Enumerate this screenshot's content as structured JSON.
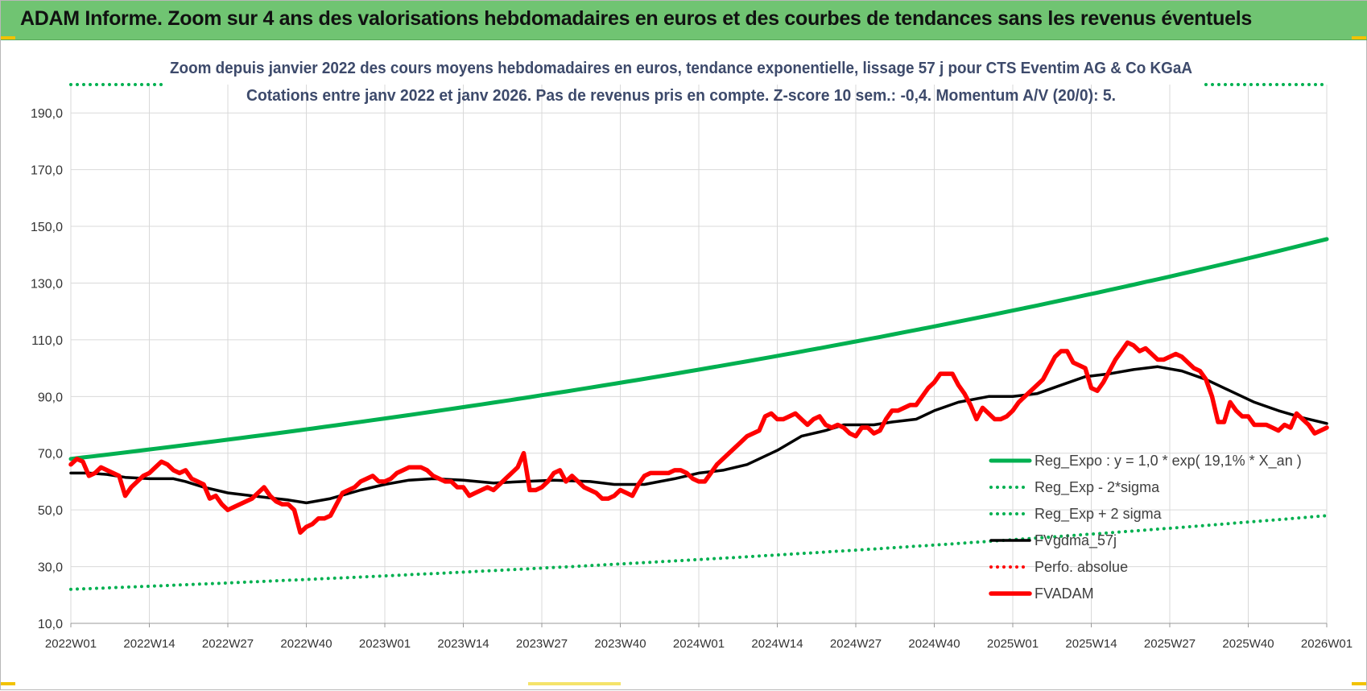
{
  "banner": {
    "title": "ADAM Informe. Zoom sur 4 ans des valorisations hebdomadaires en euros et des courbes de tendances sans les revenus éventuels"
  },
  "chart_data": {
    "type": "line",
    "title": "Zoom depuis janvier 2022 des cours moyens hebdomadaires en euros, tendance exponentielle, lissage 57 j pour CTS Eventim AG & Co KGaA",
    "subtitle": "Cotations entre janv 2022 et janv 2026. Pas de revenus pris en compte. Z-score 10 sem.: -0,4. Momentum A/V (20/0): 5.",
    "ylim": [
      10,
      200
    ],
    "yticks": [
      10,
      30,
      50,
      70,
      90,
      110,
      130,
      150,
      170,
      190
    ],
    "ytick_labels": [
      "10,0",
      "30,0",
      "50,0",
      "70,0",
      "90,0",
      "110,0",
      "130,0",
      "150,0",
      "170,0",
      "190,0"
    ],
    "xlim": [
      0,
      208
    ],
    "xticks": [
      0,
      13,
      26,
      39,
      52,
      65,
      78,
      91,
      104,
      117,
      130,
      143,
      156,
      169,
      182,
      195,
      208
    ],
    "xtick_labels": [
      "2022W01",
      "2022W14",
      "2022W27",
      "2022W40",
      "2023W01",
      "2023W14",
      "2023W27",
      "2023W40",
      "2024W01",
      "2024W14",
      "2024W27",
      "2024W40",
      "2025W01",
      "2025W14",
      "2025W27",
      "2025W40",
      "2026W01"
    ],
    "grid": true,
    "legend_position": "bottom-right",
    "series": [
      {
        "name": "Reg_Expo : y = 1,0 * exp( 19,1% * X_an )",
        "style": "solid",
        "color": "#00b050",
        "x": [
          0,
          208
        ],
        "values": [
          68,
          145.5
        ],
        "curve": "exponential"
      },
      {
        "name": "Reg_Exp - 2*sigma",
        "style": "dotted",
        "color": "#00b050",
        "x": [
          0,
          208
        ],
        "values": [
          22,
          48
        ],
        "curve": "exponential"
      },
      {
        "name": "Reg_Exp + 2 sigma",
        "style": "dotted",
        "color": "#00b050",
        "x": [
          0,
          16,
          188,
          208
        ],
        "values": [
          200,
          200,
          200,
          200
        ]
      },
      {
        "name": "FVgdma_57j",
        "style": "solid",
        "color": "#000000",
        "x": [
          0,
          3,
          6,
          9,
          13,
          17,
          19,
          22,
          26,
          30,
          34,
          36,
          39,
          43,
          48,
          52,
          56,
          60,
          65,
          70,
          75,
          80,
          86,
          90,
          95,
          100,
          104,
          108,
          112,
          117,
          121,
          125,
          128,
          133,
          136,
          140,
          143,
          147,
          152,
          156,
          160,
          164,
          168,
          172,
          176,
          180,
          184,
          188,
          192,
          196,
          200,
          204,
          208
        ],
        "values": [
          63,
          63,
          62.5,
          61.5,
          61,
          61,
          60,
          58,
          56,
          55,
          54,
          53.5,
          52.5,
          54,
          57,
          59,
          60.5,
          61,
          60.5,
          59.5,
          60,
          60.5,
          60,
          59,
          59,
          61,
          63,
          64,
          66,
          71,
          76,
          78,
          80,
          80,
          81,
          82,
          85,
          88,
          90,
          90,
          91,
          94,
          97,
          98,
          99.5,
          100.5,
          99,
          96,
          92,
          88,
          85,
          82.5,
          80.5
        ]
      },
      {
        "name": "Perfo. absolue",
        "style": "dotted",
        "color": "#ff0000",
        "x": [],
        "values": []
      },
      {
        "name": "FVADAM",
        "style": "solid",
        "color": "#ff0000",
        "x": [
          0,
          1,
          2,
          3,
          4,
          5,
          6,
          7,
          8,
          9,
          10,
          11,
          12,
          13,
          14,
          15,
          16,
          17,
          18,
          19,
          20,
          21,
          22,
          23,
          24,
          25,
          26,
          27,
          28,
          29,
          30,
          31,
          32,
          33,
          34,
          35,
          36,
          37,
          38,
          39,
          40,
          41,
          42,
          43,
          44,
          45,
          46,
          47,
          48,
          49,
          50,
          51,
          52,
          53,
          54,
          55,
          56,
          57,
          58,
          59,
          60,
          61,
          62,
          63,
          64,
          65,
          66,
          67,
          68,
          69,
          70,
          71,
          72,
          73,
          74,
          75,
          76,
          77,
          78,
          79,
          80,
          81,
          82,
          83,
          84,
          85,
          86,
          87,
          88,
          89,
          90,
          91,
          92,
          93,
          94,
          95,
          96,
          97,
          98,
          99,
          100,
          101,
          102,
          103,
          104,
          105,
          106,
          107,
          108,
          109,
          110,
          111,
          112,
          113,
          114,
          115,
          116,
          117,
          118,
          119,
          120,
          121,
          122,
          123,
          124,
          125,
          126,
          127,
          128,
          129,
          130,
          131,
          132,
          133,
          134,
          135,
          136,
          137,
          138,
          139,
          140,
          141,
          142,
          143,
          144,
          145,
          146,
          147,
          148,
          149,
          150,
          151,
          152,
          153,
          154,
          155,
          156,
          157,
          158,
          159,
          160,
          161,
          162,
          163,
          164,
          165,
          166,
          167,
          168,
          169,
          170,
          171,
          172,
          173,
          174,
          175,
          176,
          177,
          178,
          179,
          180,
          181,
          182,
          183,
          184,
          185,
          186,
          187,
          188,
          189,
          190,
          191,
          192,
          193,
          194,
          195,
          196,
          197,
          198,
          199,
          200,
          201,
          202,
          203,
          204,
          205,
          206,
          207,
          208
        ],
        "values": [
          66,
          68,
          67,
          62,
          63,
          65,
          64,
          63,
          62,
          55,
          58,
          60,
          62,
          63,
          65,
          67,
          66,
          64,
          63,
          64,
          61,
          60,
          59,
          54,
          55,
          52,
          50,
          51,
          52,
          53,
          54,
          56,
          58,
          55,
          53,
          52,
          52,
          50,
          42,
          44,
          45,
          47,
          47,
          48,
          52,
          56,
          57,
          58,
          60,
          61,
          62,
          60,
          60,
          61,
          63,
          64,
          65,
          65,
          65,
          64,
          62,
          61,
          60,
          60,
          58,
          58,
          55,
          56,
          57,
          58,
          57,
          59,
          61,
          63,
          65,
          70,
          57,
          57,
          58,
          60,
          63,
          64,
          60,
          62,
          60,
          58,
          57,
          56,
          54,
          54,
          55,
          57,
          56,
          55,
          59,
          62,
          63,
          63,
          63,
          63,
          64,
          64,
          63,
          61,
          60,
          60,
          63,
          66,
          68,
          70,
          72,
          74,
          76,
          77,
          78,
          83,
          84,
          82,
          82,
          83,
          84,
          82,
          80,
          82,
          83,
          80,
          79,
          80,
          79,
          77,
          76,
          79,
          79,
          77,
          78,
          82,
          85,
          85,
          86,
          87,
          87,
          90,
          93,
          95,
          98,
          98,
          98,
          94,
          91,
          87,
          82,
          86,
          84,
          82,
          82,
          83,
          85,
          88,
          90,
          92,
          94,
          96,
          100,
          104,
          106,
          106,
          102,
          101,
          100,
          93,
          92,
          95,
          99,
          103,
          106,
          109,
          108,
          106,
          107,
          105,
          103,
          103,
          104,
          105,
          104,
          102,
          100,
          99,
          96,
          90,
          81,
          81,
          88,
          85,
          83,
          83,
          80,
          80,
          80,
          79,
          78,
          80,
          79,
          84,
          82,
          80,
          77,
          78,
          79
        ]
      }
    ]
  }
}
